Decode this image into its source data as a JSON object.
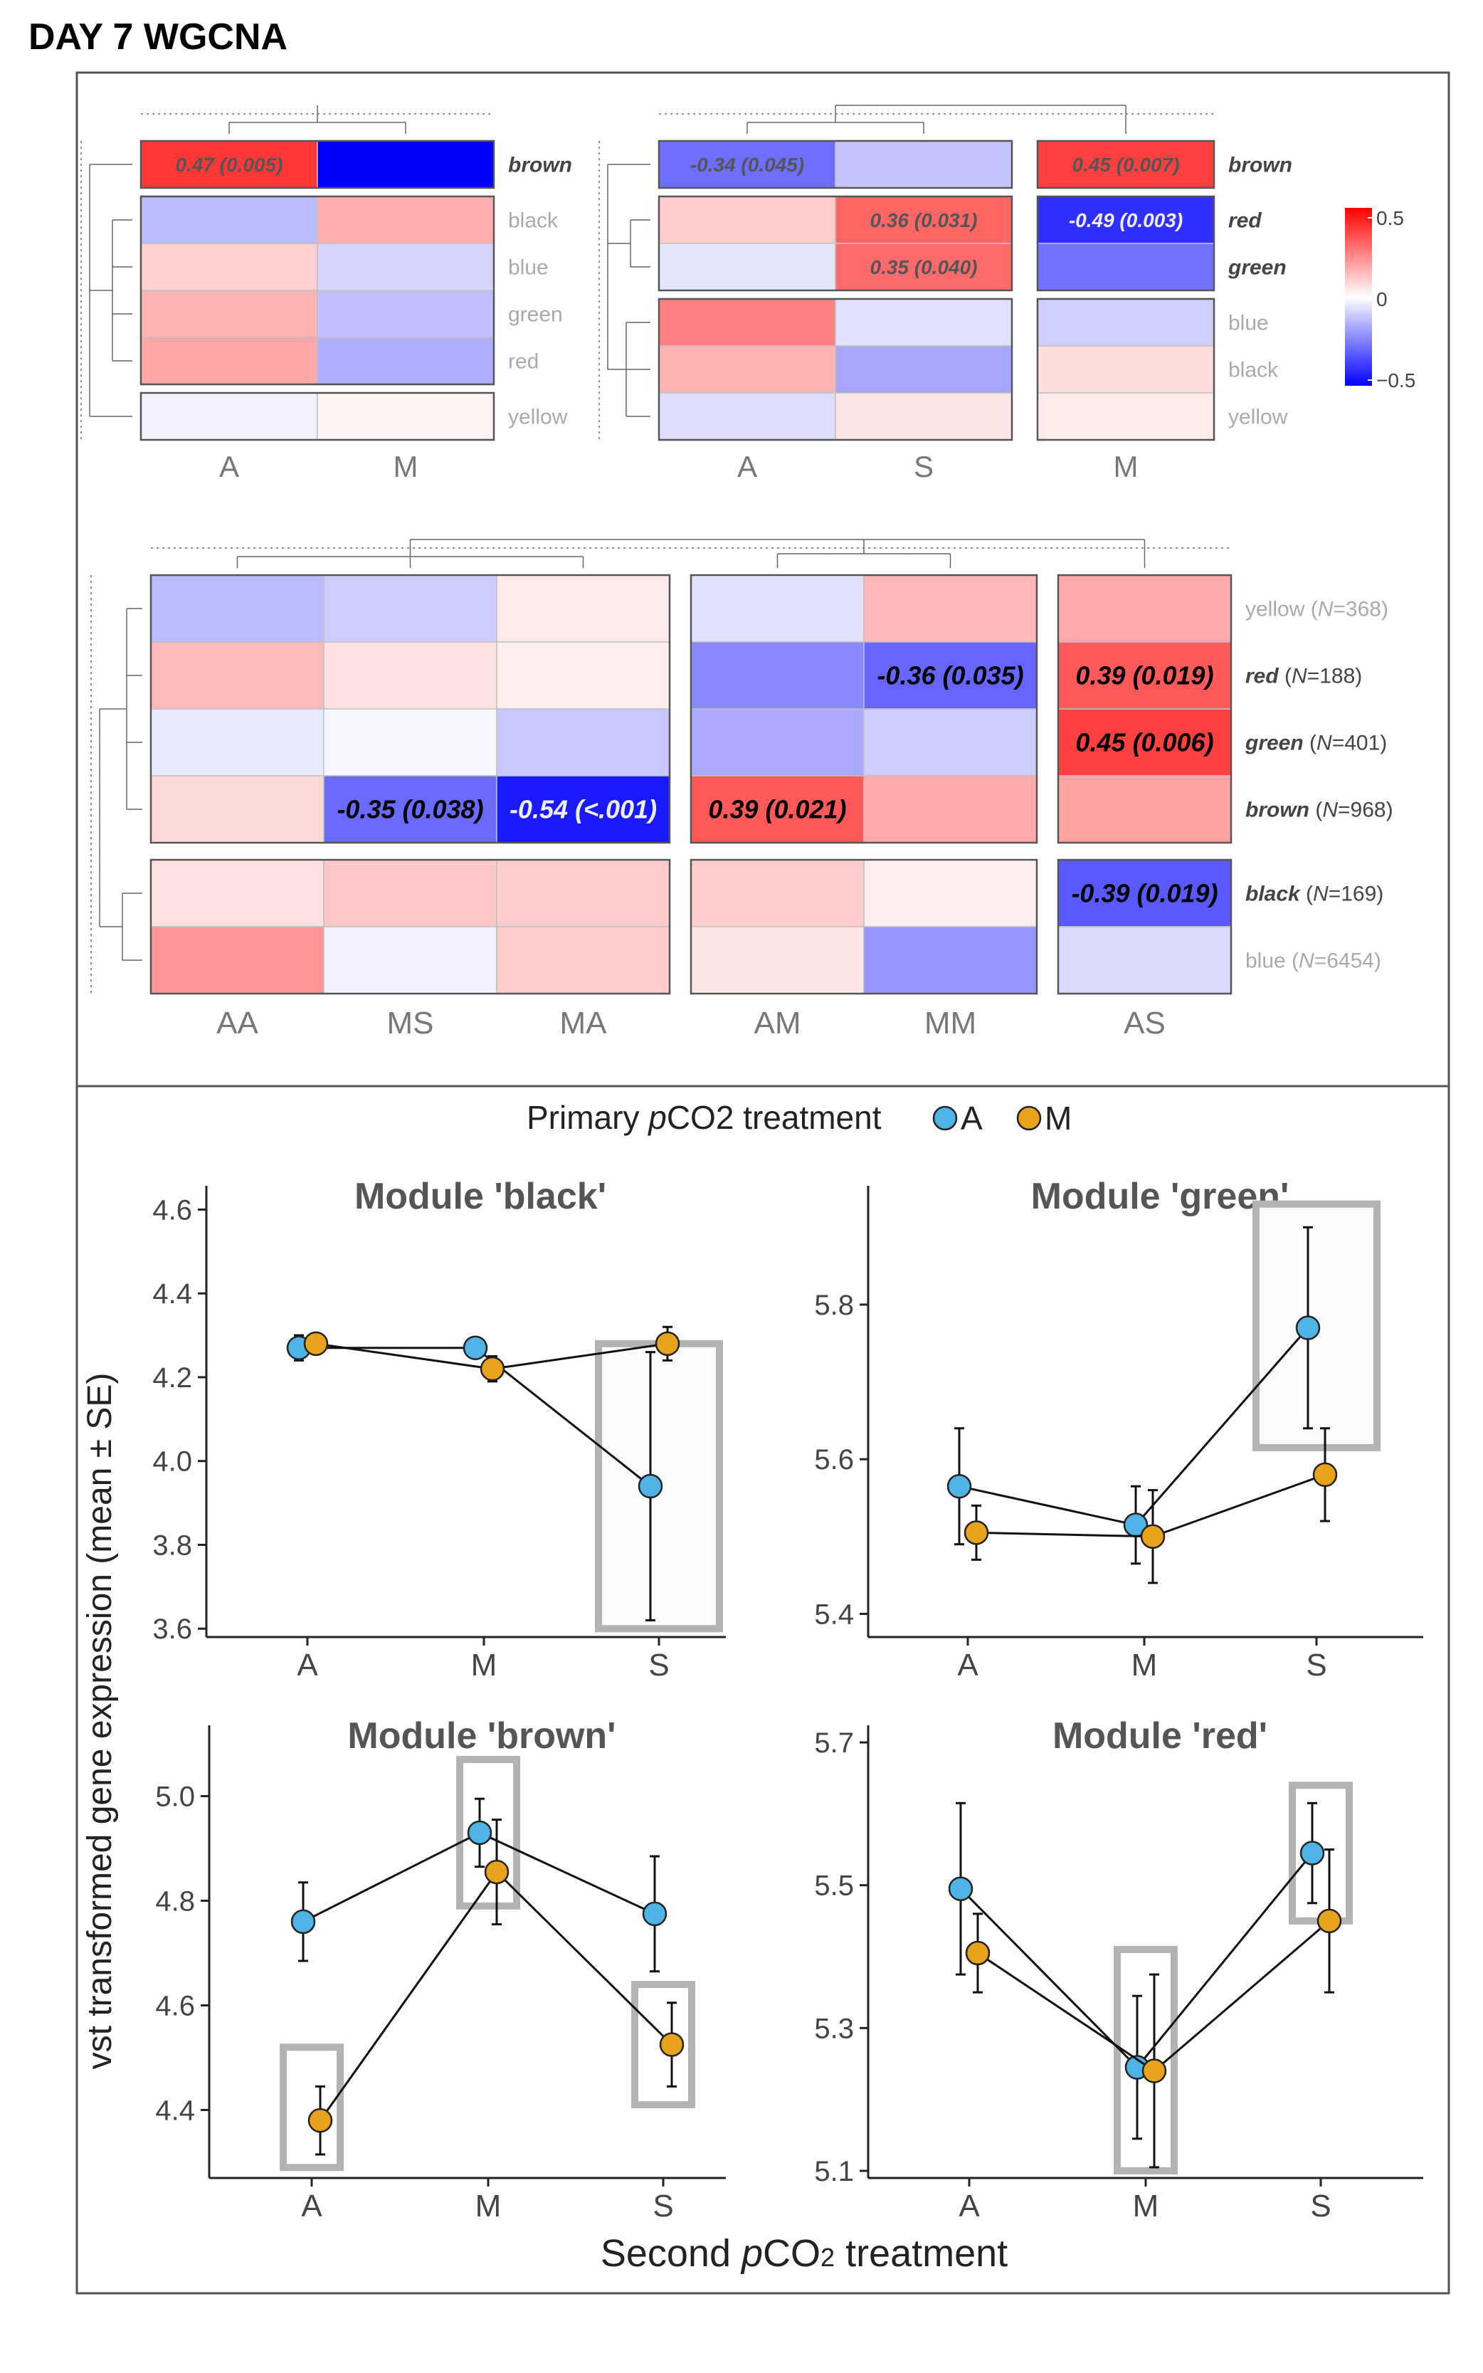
{
  "title": "DAY 7 WGCNA",
  "colors": {
    "neg": "#0000ff",
    "pos": "#ff0000",
    "mid": "#ffffff",
    "A": "#4fb3e6",
    "M": "#e8a21c",
    "box": "#b3b3b3",
    "label_gray": "#aaaaaa"
  },
  "heatmaps": {
    "legend": {
      "ticks": [
        "0.5",
        "0",
        "−0.5"
      ],
      "min": -0.5,
      "max": 0.5
    },
    "panel1": {
      "cols": [
        "A",
        "M"
      ],
      "rows": [
        "brown",
        "black",
        "blue",
        "green",
        "red",
        "yellow"
      ],
      "groups": [
        1,
        4,
        1
      ],
      "bold_rows": [
        "brown"
      ],
      "values": [
        [
          0.47,
          -0.62
        ],
        [
          -0.16,
          0.19
        ],
        [
          0.11,
          -0.1
        ],
        [
          0.18,
          -0.15
        ],
        [
          0.21,
          -0.19
        ],
        [
          -0.03,
          0.03
        ]
      ],
      "labels": [
        [
          "0.47 (0.005)",
          ""
        ],
        [
          "",
          ""
        ],
        [
          "",
          ""
        ],
        [
          "",
          ""
        ],
        [
          "",
          ""
        ],
        [
          "",
          ""
        ]
      ]
    },
    "panel2": {
      "cols": [
        "A",
        "S",
        "M"
      ],
      "rows": [
        "brown",
        "red",
        "green",
        "blue",
        "black",
        "yellow"
      ],
      "groups": [
        1,
        2,
        3
      ],
      "col_groups": [
        2,
        1
      ],
      "bold_rows": [
        "brown",
        "red",
        "green"
      ],
      "values": [
        [
          -0.34,
          -0.14,
          0.45
        ],
        [
          0.12,
          0.36,
          -0.49
        ],
        [
          -0.06,
          0.35,
          -0.33
        ],
        [
          0.3,
          -0.07,
          -0.11
        ],
        [
          0.18,
          -0.21,
          0.08
        ],
        [
          -0.08,
          0.06,
          0.05
        ]
      ],
      "labels": [
        [
          "-0.34 (0.045)",
          "",
          "0.45 (0.007)"
        ],
        [
          "",
          "0.36 (0.031)",
          "-0.49 (0.003)"
        ],
        [
          "",
          "0.35 (0.040)",
          ""
        ],
        [
          "",
          "",
          ""
        ],
        [
          "",
          "",
          ""
        ],
        [
          "",
          "",
          ""
        ]
      ]
    },
    "panel3": {
      "cols": [
        "AA",
        "MS",
        "MA",
        "AM",
        "MM",
        "AS"
      ],
      "col_groups": [
        3,
        2,
        1
      ],
      "rows": [
        "yellow",
        "red",
        "green",
        "brown",
        "black",
        "blue"
      ],
      "row_n": [
        "368",
        "188",
        "401",
        "968",
        "169",
        "6454"
      ],
      "groups": [
        4,
        2
      ],
      "bold_rows": [
        "red",
        "green",
        "brown",
        "black"
      ],
      "values": [
        [
          -0.16,
          -0.12,
          0.05,
          -0.07,
          0.17,
          0.2
        ],
        [
          0.16,
          0.07,
          0.04,
          -0.28,
          -0.36,
          0.39
        ],
        [
          -0.05,
          -0.02,
          -0.13,
          -0.2,
          -0.12,
          0.45
        ],
        [
          0.09,
          -0.35,
          -0.54,
          0.39,
          0.2,
          0.22
        ],
        [
          0.07,
          0.13,
          0.12,
          0.12,
          0.04,
          -0.39
        ],
        [
          0.25,
          -0.03,
          0.12,
          0.06,
          -0.25,
          -0.09
        ]
      ],
      "labels": [
        [
          "",
          "",
          "",
          "",
          "",
          ""
        ],
        [
          "",
          "",
          "",
          "",
          "-0.36 (0.035)",
          "0.39 (0.019)"
        ],
        [
          "",
          "",
          "",
          "",
          "",
          "0.45 (0.006)"
        ],
        [
          "",
          "-0.35 (0.038)",
          "-0.54 (<.001)",
          "0.39 (0.021)",
          "",
          ""
        ],
        [
          "",
          "",
          "",
          "",
          "",
          "-0.39 (0.019)"
        ],
        [
          "",
          "",
          "",
          "",
          "",
          ""
        ]
      ]
    }
  },
  "legend": {
    "title_pre": "Primary ",
    "title_italic": "p",
    "title_post": "CO2 treatment",
    "items": [
      "A",
      "M"
    ]
  },
  "ylabel": "vst transformed gene expression (mean ± SE)",
  "xlabel": {
    "pre": "Second ",
    "italic": "p",
    "post": "CO",
    "sub": "2",
    "tail": " treatment"
  },
  "chart_data": [
    {
      "type": "line",
      "title": "Module 'black'",
      "categories": [
        "A",
        "M",
        "S"
      ],
      "ylim": [
        3.58,
        4.65
      ],
      "yticks": [
        3.6,
        3.8,
        4.0,
        4.2,
        4.4,
        4.6
      ],
      "series": [
        {
          "name": "A",
          "values": [
            4.27,
            4.27,
            3.94
          ],
          "se": [
            0.03,
            0.02,
            0.32
          ]
        },
        {
          "name": "M",
          "values": [
            4.28,
            4.22,
            4.28
          ],
          "se": [
            0.01,
            0.03,
            0.04
          ]
        }
      ],
      "boxes": [
        {
          "category": "S",
          "ymin": 3.6,
          "ymax": 4.28
        }
      ]
    },
    {
      "type": "line",
      "title": "Module 'green'",
      "categories": [
        "A",
        "M",
        "S"
      ],
      "ylim": [
        5.37,
        5.95
      ],
      "yticks": [
        5.4,
        5.6,
        5.8
      ],
      "series": [
        {
          "name": "A",
          "values": [
            5.565,
            5.515,
            5.77
          ],
          "se": [
            0.075,
            0.05,
            0.13
          ]
        },
        {
          "name": "M",
          "values": [
            5.505,
            5.5,
            5.58
          ],
          "se": [
            0.035,
            0.06,
            0.06
          ]
        }
      ],
      "boxes": [
        {
          "category": "S",
          "ymin": 5.615,
          "ymax": 5.93
        }
      ]
    },
    {
      "type": "line",
      "title": "Module 'brown'",
      "categories": [
        "A",
        "M",
        "S"
      ],
      "ylim": [
        4.27,
        5.13
      ],
      "yticks": [
        4.4,
        4.6,
        4.8,
        5.0
      ],
      "series": [
        {
          "name": "A",
          "values": [
            4.76,
            4.93,
            4.775
          ],
          "se": [
            0.075,
            0.065,
            0.11
          ]
        },
        {
          "name": "M",
          "values": [
            4.38,
            4.855,
            4.525
          ],
          "se": [
            0.065,
            0.1,
            0.08
          ]
        }
      ],
      "boxes": [
        {
          "category": "A",
          "ymin": 4.29,
          "ymax": 4.52
        },
        {
          "category": "M",
          "ymin": 4.79,
          "ymax": 5.07
        },
        {
          "category": "S",
          "ymin": 4.41,
          "ymax": 4.64
        }
      ]
    },
    {
      "type": "line",
      "title": "Module 'red'",
      "categories": [
        "A",
        "M",
        "S"
      ],
      "ylim": [
        5.09,
        5.72
      ],
      "yticks": [
        5.1,
        5.3,
        5.5,
        5.7
      ],
      "series": [
        {
          "name": "A",
          "values": [
            5.495,
            5.245,
            5.545
          ],
          "se": [
            0.12,
            0.1,
            0.07
          ]
        },
        {
          "name": "M",
          "values": [
            5.405,
            5.24,
            5.45
          ],
          "se": [
            0.055,
            0.135,
            0.1
          ]
        }
      ],
      "boxes": [
        {
          "category": "M",
          "ymin": 5.1,
          "ymax": 5.41
        },
        {
          "category": "S",
          "ymin": 5.45,
          "ymax": 5.64
        }
      ]
    }
  ]
}
